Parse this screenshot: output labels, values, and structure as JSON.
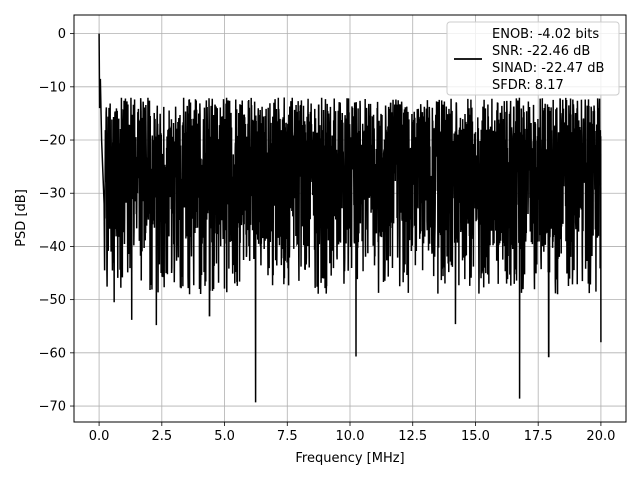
{
  "chart_data": {
    "type": "line",
    "title": "",
    "xlabel": "Frequency [MHz]",
    "ylabel": "PSD [dB]",
    "xlim": [
      -1.0,
      21.0
    ],
    "ylim": [
      -73.0,
      3.5
    ],
    "xticks": [
      0.0,
      2.5,
      5.0,
      7.5,
      10.0,
      12.5,
      15.0,
      17.5,
      20.0
    ],
    "xtick_labels": [
      "0.0",
      "2.5",
      "5.0",
      "7.5",
      "10.0",
      "12.5",
      "15.0",
      "17.5",
      "20.0"
    ],
    "yticks": [
      0,
      -10,
      -20,
      -30,
      -40,
      -50,
      -60,
      -70
    ],
    "ytick_labels": [
      "0",
      "−10",
      "−20",
      "−30",
      "−40",
      "−50",
      "−60",
      "−70"
    ],
    "grid": true,
    "legend_position": "top-right",
    "series": [
      {
        "color": "#000000",
        "description": "dense noisy PSD: peak ~0 dB at 0 MHz, floor fluctuating mostly between -12 and -45 dB across 0-20 MHz",
        "x": [
          0.0,
          0.02,
          0.05,
          0.1,
          0.2,
          0.35,
          0.6,
          0.9,
          1.3,
          2.28,
          2.5,
          4.0,
          4.4,
          5.0,
          6.24,
          6.5,
          8.0,
          10.24,
          10.5,
          12.5,
          14.2,
          15.0,
          16.76,
          17.0,
          17.92,
          18.5,
          19.5,
          20.0
        ],
        "y": [
          0.0,
          -14.0,
          -8.5,
          -20.0,
          -32.0,
          -26.0,
          -50.5,
          -30.0,
          -53.8,
          -54.8,
          -28.0,
          -48.0,
          -53.0,
          -30.0,
          -69.3,
          -28.0,
          -45.0,
          -60.7,
          -27.0,
          -42.0,
          -54.6,
          -28.0,
          -68.6,
          -30.0,
          -60.7,
          -29.0,
          -47.0,
          -58.0
        ]
      }
    ],
    "legend": {
      "lines": [
        "ENOB: -4.02 bits",
        "SNR: -22.46 dB",
        "SINAD: -22.47 dB",
        "SFDR: 8.17"
      ]
    }
  }
}
